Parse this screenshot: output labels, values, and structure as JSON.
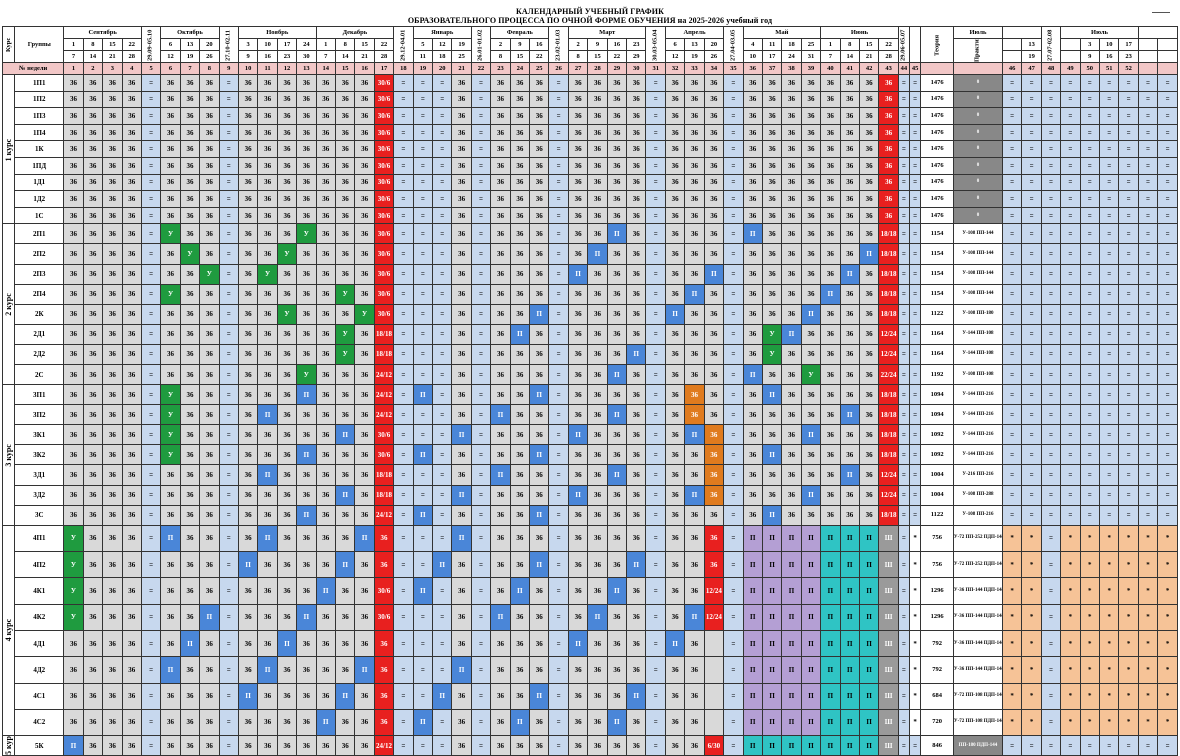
{
  "title": {
    "line1": "КАЛЕНДАРНЫЙ УЧЕБНЫЙ ГРАФИК",
    "line2": "ОБРАЗОВАТЕЛЬНОГО ПРОЦЕССА ПО ОЧНОЙ ФОРМЕ ОБУЧЕНИЯ на 2025-2026 учебный год"
  },
  "header": {
    "kurs": "Курс",
    "groups": "Группы",
    "week_no": "№ недели",
    "months": [
      "Сентябрь",
      "Октябрь",
      "Ноябрь",
      "Декабрь",
      "Январь",
      "Февраль",
      "Март",
      "Апрель",
      "Май",
      "Июнь",
      "Июль",
      "Август"
    ],
    "span_labels": [
      "29.09-05.10",
      "27.10-02.11",
      "29.12-04.01",
      "26.01-01.02",
      "23.02-01.03",
      "30.03-05.04",
      "27.04-03.05",
      "29.06-05.07",
      "27.07-02.08"
    ],
    "theory": "Теория",
    "practice": "Практика",
    "legend_cols": [
      "0"
    ]
  },
  "weeks": [
    "1",
    "2",
    "3",
    "4",
    "5",
    "6",
    "7",
    "8",
    "9",
    "10",
    "11",
    "12",
    "13",
    "14",
    "15",
    "16",
    "17",
    "18",
    "19",
    "20",
    "21",
    "22",
    "23",
    "24",
    "25",
    "26",
    "27",
    "28",
    "29",
    "30",
    "31",
    "32",
    "33",
    "34",
    "35",
    "36",
    "37",
    "38",
    "39",
    "40",
    "41",
    "42",
    "43",
    "44",
    "45",
    "",
    "",
    "46",
    "47",
    "48",
    "49",
    "50",
    "51",
    "52"
  ],
  "top_days": [
    "1",
    "8",
    "15",
    "22",
    "",
    "6",
    "13",
    "20",
    "",
    "3",
    "10",
    "17",
    "24",
    "1",
    "8",
    "15",
    "22",
    "",
    "5",
    "12",
    "19",
    "",
    "2",
    "9",
    "16",
    "",
    "2",
    "9",
    "16",
    "23",
    "",
    "6",
    "13",
    "20",
    "",
    "4",
    "11",
    "18",
    "25",
    "1",
    "8",
    "15",
    "22",
    "",
    "6",
    "",
    "",
    "",
    "13",
    "20",
    "",
    "3",
    "10",
    "17",
    "24"
  ],
  "bot_days": [
    "7",
    "14",
    "21",
    "28",
    "",
    "12",
    "19",
    "26",
    "",
    "9",
    "16",
    "23",
    "30",
    "7",
    "14",
    "21",
    "28",
    "",
    "11",
    "18",
    "25",
    "",
    "8",
    "15",
    "22",
    "",
    "8",
    "15",
    "22",
    "29",
    "",
    "12",
    "19",
    "26",
    "",
    "10",
    "17",
    "24",
    "31",
    "7",
    "14",
    "21",
    "28",
    "",
    "12",
    "",
    "",
    "",
    "19",
    "26",
    "",
    "9",
    "16",
    "23",
    "30"
  ],
  "kurs_labels": [
    "1 курс",
    "2 курс",
    "3 курс",
    "4 курс",
    "5 кур"
  ],
  "sections": [
    {
      "kurs": "1 курс",
      "cls": "r1",
      "rows": [
        {
          "g": "1П1",
          "t": "1476",
          "p": "0"
        },
        {
          "g": "1П2",
          "t": "1476",
          "p": "0"
        },
        {
          "g": "1П3",
          "t": "1476",
          "p": "0"
        },
        {
          "g": "1П4",
          "t": "1476",
          "p": "0"
        },
        {
          "g": "1К",
          "t": "1476",
          "p": "0"
        },
        {
          "g": "1ПД",
          "t": "1476",
          "p": "0"
        },
        {
          "g": "1Д1",
          "t": "1476",
          "p": "0"
        },
        {
          "g": "1Д2",
          "t": "1476",
          "p": "0"
        },
        {
          "g": "1С",
          "t": "1476",
          "p": "0"
        }
      ]
    },
    {
      "kurs": "2 курс",
      "cls": "r2",
      "rows": [
        {
          "g": "2П1",
          "t": "1154",
          "p": "У-108 ПП-144"
        },
        {
          "g": "2П2",
          "t": "1154",
          "p": "У-108 ПП-144"
        },
        {
          "g": "2П3",
          "t": "1154",
          "p": "У-108 ПП-144"
        },
        {
          "g": "2П4",
          "t": "1154",
          "p": "У-108 ПП-144"
        },
        {
          "g": "2К",
          "t": "1122",
          "p": "У-108 ПП-180"
        },
        {
          "g": "2Д1",
          "t": "1164",
          "p": "У-144 ПП-108"
        },
        {
          "g": "2Д2",
          "t": "1164",
          "p": "У-144 ПП-108"
        },
        {
          "g": "2С",
          "t": "1192",
          "p": "У-108 ПП-108"
        }
      ]
    },
    {
      "kurs": "3 курс",
      "cls": "r3",
      "rows": [
        {
          "g": "3П1",
          "t": "1094",
          "p": "У-144 ПП-216"
        },
        {
          "g": "3П2",
          "t": "1094",
          "p": "У-144 ПП-216"
        },
        {
          "g": "3К1",
          "t": "1092",
          "p": "У-144 ПП-216"
        },
        {
          "g": "3К2",
          "t": "1092",
          "p": "У-144 ПП-216"
        },
        {
          "g": "3Д1",
          "t": "1004",
          "p": "У-216 ПП-216"
        },
        {
          "g": "3Д2",
          "t": "1004",
          "p": "У-108 ПП-288"
        },
        {
          "g": "3С",
          "t": "1122",
          "p": "У-108 ПП-216"
        }
      ]
    },
    {
      "kurs": "4 курс",
      "cls": "r4",
      "rows": [
        {
          "g": "4П1",
          "t": "756",
          "p": "У-72 ПП-252 ПДП-144"
        },
        {
          "g": "4П2",
          "t": "756",
          "p": "У-72 ПП-252 ПДП-144"
        },
        {
          "g": "4К1",
          "t": "1296",
          "p": "У-36 ПП-144 ПДП-144"
        },
        {
          "g": "4К2",
          "t": "1296",
          "p": "У-36 ПП-144 ПДП-144"
        },
        {
          "g": "4Д1",
          "t": "792",
          "p": "У-36 ПП-144 ПДП-144"
        },
        {
          "g": "4Д2",
          "t": "792",
          "p": "У-36 ПП-144 ПДП-144"
        },
        {
          "g": "4С1",
          "t": "684",
          "p": "У-72 ПП-108 ПДП-144"
        },
        {
          "g": "4С2",
          "t": "720",
          "p": "У-72 ПП-108 ПДП-144"
        }
      ]
    },
    {
      "kurs": "5 кур",
      "cls": "r5",
      "rows": [
        {
          "g": "5К",
          "t": "846",
          "p": "ПП-180 ПДП-144"
        }
      ]
    }
  ]
}
